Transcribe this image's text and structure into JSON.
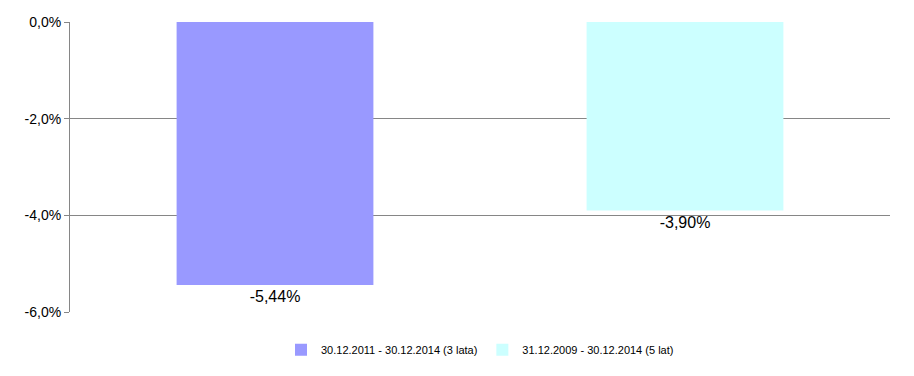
{
  "chart_data": {
    "type": "bar",
    "categories": [
      null,
      null
    ],
    "series": [
      {
        "name": "30.12.2011 - 30.12.2014 (3 lata)",
        "color": "#9999ff",
        "values": [
          -5.44,
          null
        ],
        "value_labels": [
          "-5,44%",
          null
        ]
      },
      {
        "name": "31.12.2009 - 30.12.2014 (5 lat)",
        "color": "#ccffff",
        "values": [
          null,
          -3.9
        ],
        "value_labels": [
          null,
          "-3,90%"
        ]
      }
    ],
    "ylim": [
      -6,
      0
    ],
    "yticks": [
      {
        "value": 0,
        "label": "0,0%"
      },
      {
        "value": -2,
        "label": "-2,0%"
      },
      {
        "value": -4,
        "label": "-4,0%"
      },
      {
        "value": -6,
        "label": "-6,0%"
      }
    ],
    "grid": true,
    "legend": "bottom",
    "data_labels": true,
    "tick_labels": "y"
  }
}
